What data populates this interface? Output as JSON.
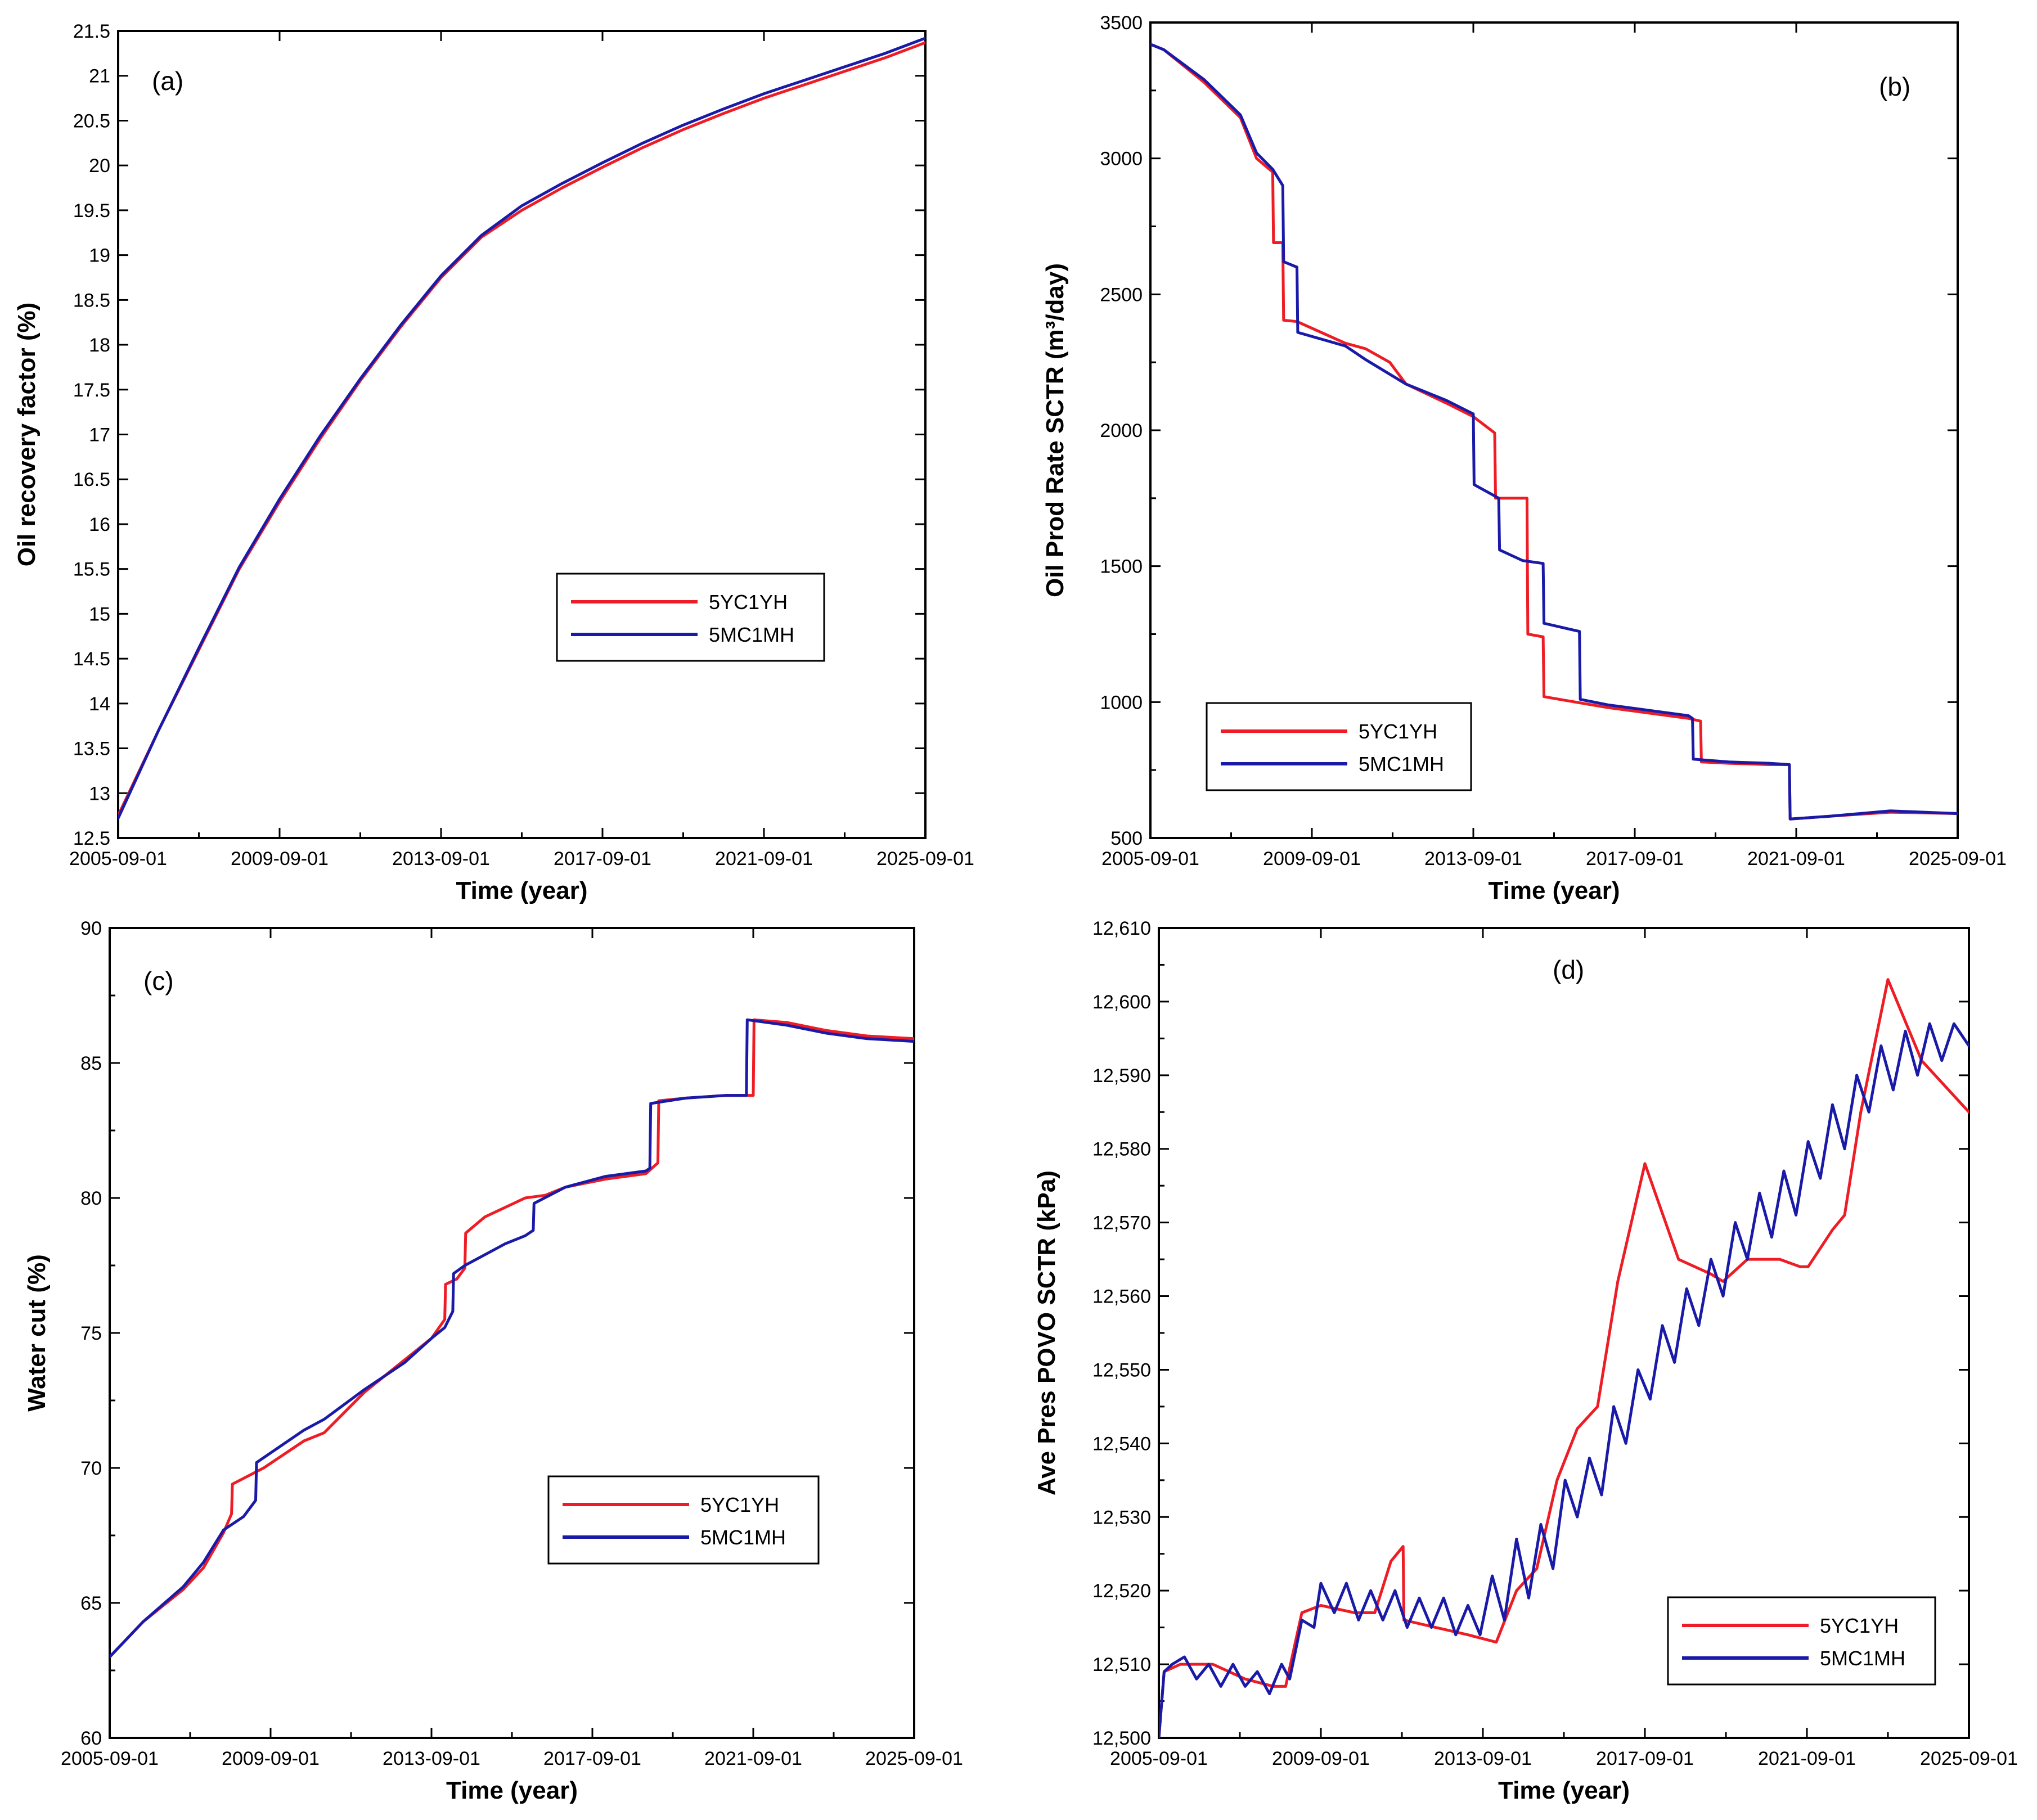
{
  "figure": {
    "colors": {
      "series_a": "#ee1c25",
      "series_b": "#1a1aa8"
    }
  },
  "chart_data": [
    {
      "panel": "(a)",
      "type": "line",
      "xlabel": "Time (year)",
      "ylabel": "Oil recovery factor (%)",
      "xlim": [
        2005.67,
        2025.67
      ],
      "ylim": [
        12.5,
        21.5
      ],
      "x_ticks": [
        2005.67,
        2009.67,
        2013.67,
        2017.67,
        2021.67,
        2025.67
      ],
      "x_tick_labels": [
        "2005-09-01",
        "2009-09-01",
        "2013-09-01",
        "2017-09-01",
        "2021-09-01",
        "2025-09-01"
      ],
      "y_ticks": [
        12.5,
        13,
        13.5,
        14,
        14.5,
        15,
        15.5,
        16,
        16.5,
        17,
        17.5,
        18,
        18.5,
        19,
        19.5,
        20,
        20.5,
        21,
        21.5
      ],
      "y_tick_labels": [
        "12.5",
        "13",
        "13.5",
        "14",
        "14.5",
        "15",
        "15.5",
        "16",
        "16.5",
        "17",
        "17.5",
        "18",
        "18.5",
        "19",
        "19.5",
        "20",
        "20.5",
        "21",
        "21.5"
      ],
      "legend_position": "middle-right",
      "series": [
        {
          "name": "5YC1YH",
          "color": "#ee1c25",
          "x": [
            2005.67,
            2006.67,
            2007.67,
            2008.67,
            2009.67,
            2010.67,
            2011.67,
            2012.67,
            2013.67,
            2014.67,
            2015.67,
            2016.67,
            2017.67,
            2018.67,
            2019.67,
            2020.67,
            2021.67,
            2022.67,
            2023.67,
            2024.67,
            2025.67
          ],
          "y": [
            12.75,
            13.7,
            14.6,
            15.5,
            16.25,
            16.95,
            17.6,
            18.2,
            18.75,
            19.2,
            19.5,
            19.75,
            19.98,
            20.2,
            20.4,
            20.58,
            20.75,
            20.9,
            21.05,
            21.2,
            21.37
          ]
        },
        {
          "name": "5MC1MH",
          "color": "#1a1aa8",
          "x": [
            2005.67,
            2006.67,
            2007.67,
            2008.67,
            2009.67,
            2010.67,
            2011.67,
            2012.67,
            2013.67,
            2014.67,
            2015.67,
            2016.67,
            2017.67,
            2018.67,
            2019.67,
            2020.67,
            2021.67,
            2022.67,
            2023.67,
            2024.67,
            2025.67
          ],
          "y": [
            12.72,
            13.7,
            14.62,
            15.52,
            16.28,
            16.98,
            17.62,
            18.22,
            18.77,
            19.22,
            19.55,
            19.8,
            20.03,
            20.25,
            20.45,
            20.63,
            20.8,
            20.95,
            21.1,
            21.25,
            21.42
          ]
        }
      ]
    },
    {
      "panel": "(b)",
      "type": "line",
      "xlabel": "Time (year)",
      "ylabel": "Oil Prod Rate SCTR (m³/day)",
      "xlim": [
        2005.67,
        2025.67
      ],
      "ylim": [
        500,
        3500
      ],
      "x_ticks": [
        2005.67,
        2009.67,
        2013.67,
        2017.67,
        2021.67,
        2025.67
      ],
      "x_tick_labels": [
        "2005-09-01",
        "2009-09-01",
        "2013-09-01",
        "2017-09-01",
        "2021-09-01",
        "2025-09-01"
      ],
      "y_ticks": [
        500,
        1000,
        1500,
        2000,
        2500,
        3000,
        3500
      ],
      "y_tick_labels": [
        "500",
        "1000",
        "1500",
        "2000",
        "2500",
        "3000",
        "3500"
      ],
      "legend_position": "bottom-left",
      "series": [
        {
          "name": "5YC1YH",
          "color": "#ee1c25",
          "x": [
            2005.67,
            2006.0,
            2007.0,
            2007.9,
            2008.3,
            2008.7,
            2008.72,
            2008.95,
            2008.97,
            2009.3,
            2010.5,
            2011.0,
            2011.6,
            2012.0,
            2013.0,
            2013.67,
            2014.2,
            2014.22,
            2014.5,
            2014.52,
            2015.0,
            2015.02,
            2015.4,
            2015.42,
            2016.2,
            2017.0,
            2018.0,
            2019.0,
            2019.3,
            2019.32,
            2020.0,
            2021.0,
            2021.5,
            2021.52,
            2022.5,
            2024.0,
            2025.67
          ],
          "y": [
            3420,
            3400,
            3280,
            3150,
            3000,
            2950,
            2690,
            2690,
            2405,
            2400,
            2320,
            2300,
            2250,
            2170,
            2100,
            2050,
            1990,
            1750,
            1750,
            1750,
            1750,
            1250,
            1240,
            1020,
            1000,
            980,
            960,
            940,
            930,
            780,
            775,
            770,
            770,
            570,
            580,
            595,
            590
          ]
        },
        {
          "name": "5MC1MH",
          "color": "#1a1aa8",
          "x": [
            2005.67,
            2006.0,
            2007.0,
            2007.9,
            2008.3,
            2008.7,
            2008.95,
            2008.97,
            2009.3,
            2009.32,
            2010.5,
            2011.0,
            2012.0,
            2013.0,
            2013.67,
            2013.69,
            2014.3,
            2014.32,
            2014.9,
            2014.92,
            2015.4,
            2015.42,
            2016.3,
            2016.32,
            2017.0,
            2018.0,
            2019.0,
            2019.1,
            2019.12,
            2020.0,
            2021.0,
            2021.5,
            2021.52,
            2022.5,
            2024.0,
            2025.67
          ],
          "y": [
            3420,
            3400,
            3290,
            3160,
            3020,
            2960,
            2900,
            2620,
            2600,
            2360,
            2310,
            2260,
            2170,
            2110,
            2060,
            1800,
            1750,
            1560,
            1520,
            1520,
            1510,
            1290,
            1260,
            1010,
            990,
            970,
            950,
            940,
            790,
            780,
            775,
            770,
            570,
            580,
            600,
            590
          ]
        }
      ]
    },
    {
      "panel": "(c)",
      "type": "line",
      "xlabel": "Time (year)",
      "ylabel": "Water cut (%)",
      "xlim": [
        2005.67,
        2025.67
      ],
      "ylim": [
        60,
        90
      ],
      "x_ticks": [
        2005.67,
        2009.67,
        2013.67,
        2017.67,
        2021.67,
        2025.67
      ],
      "x_tick_labels": [
        "2005-09-01",
        "2009-09-01",
        "2013-09-01",
        "2017-09-01",
        "2021-09-01",
        "2025-09-01"
      ],
      "y_ticks": [
        60,
        65,
        70,
        75,
        80,
        85,
        90
      ],
      "y_tick_labels": [
        "60",
        "65",
        "70",
        "75",
        "80",
        "85",
        "90"
      ],
      "legend_position": "bottom-right",
      "series": [
        {
          "name": "5YC1YH",
          "color": "#ee1c25",
          "x": [
            2005.67,
            2006.5,
            2007.5,
            2008.0,
            2008.5,
            2008.7,
            2008.72,
            2009.5,
            2010.5,
            2011.0,
            2012.0,
            2013.0,
            2013.67,
            2014.0,
            2014.02,
            2014.3,
            2014.5,
            2014.52,
            2015.0,
            2016.0,
            2016.5,
            2017.0,
            2018.0,
            2019.0,
            2019.3,
            2019.32,
            2020.0,
            2021.0,
            2021.67,
            2021.69,
            2022.5,
            2023.5,
            2024.5,
            2025.67
          ],
          "y": [
            63.0,
            64.3,
            65.5,
            66.3,
            67.6,
            68.3,
            69.4,
            70.0,
            71.0,
            71.3,
            72.8,
            74.0,
            74.8,
            75.5,
            76.8,
            77.0,
            77.4,
            78.7,
            79.3,
            80.0,
            80.1,
            80.4,
            80.7,
            80.9,
            81.3,
            83.6,
            83.7,
            83.8,
            83.8,
            86.6,
            86.5,
            86.2,
            86.0,
            85.9
          ]
        },
        {
          "name": "5MC1MH",
          "color": "#1a1aa8",
          "x": [
            2005.67,
            2006.5,
            2007.5,
            2008.0,
            2008.5,
            2009.0,
            2009.3,
            2009.32,
            2010.5,
            2011.0,
            2012.0,
            2013.0,
            2013.67,
            2014.0,
            2014.2,
            2014.22,
            2014.5,
            2015.0,
            2015.5,
            2016.0,
            2016.2,
            2016.22,
            2017.0,
            2018.0,
            2019.0,
            2019.1,
            2019.12,
            2020.0,
            2021.0,
            2021.5,
            2021.52,
            2022.5,
            2023.5,
            2024.5,
            2025.67
          ],
          "y": [
            63.0,
            64.3,
            65.6,
            66.5,
            67.7,
            68.2,
            68.8,
            70.2,
            71.4,
            71.8,
            72.9,
            73.9,
            74.8,
            75.2,
            75.8,
            77.2,
            77.5,
            77.9,
            78.3,
            78.6,
            78.8,
            79.8,
            80.4,
            80.8,
            81.0,
            81.1,
            83.5,
            83.7,
            83.8,
            83.8,
            86.6,
            86.4,
            86.1,
            85.9,
            85.8
          ]
        }
      ]
    },
    {
      "panel": "(d)",
      "type": "line",
      "xlabel": "Time (year)",
      "ylabel": "Ave Pres POVO SCTR (kPa)",
      "xlim": [
        2005.67,
        2025.67
      ],
      "ylim": [
        12500,
        12610
      ],
      "x_ticks": [
        2005.67,
        2009.67,
        2013.67,
        2017.67,
        2021.67,
        2025.67
      ],
      "x_tick_labels": [
        "2005-09-01",
        "2009-09-01",
        "2013-09-01",
        "2017-09-01",
        "2021-09-01",
        "2025-09-01"
      ],
      "y_ticks": [
        12500,
        12510,
        12520,
        12530,
        12540,
        12550,
        12560,
        12570,
        12580,
        12590,
        12600,
        12610
      ],
      "y_tick_labels": [
        "12,500",
        "12,510",
        "12,520",
        "12,530",
        "12,540",
        "12,550",
        "12,560",
        "12,570",
        "12,580",
        "12,590",
        "12,600",
        "12,610"
      ],
      "legend_position": "bottom-right",
      "series": [
        {
          "name": "5YC1YH",
          "color": "#ee1c25",
          "x": [
            2005.67,
            2005.8,
            2006.2,
            2007.0,
            2007.8,
            2008.5,
            2008.8,
            2009.2,
            2009.67,
            2010.5,
            2011.0,
            2011.4,
            2011.7,
            2011.72,
            2012.5,
            2013.3,
            2014.0,
            2014.5,
            2015.0,
            2015.5,
            2016.0,
            2016.5,
            2017.0,
            2017.67,
            2018.5,
            2019.3,
            2019.6,
            2020.2,
            2021.0,
            2021.5,
            2021.7,
            2022.3,
            2022.6,
            2023.0,
            2023.67,
            2024.5,
            2025.67
          ],
          "y": [
            12500,
            12509,
            12510,
            12510,
            12508,
            12507,
            12507,
            12517,
            12518,
            12517,
            12517,
            12524,
            12526,
            12516,
            12515,
            12514,
            12513,
            12520,
            12523,
            12535,
            12542,
            12545,
            12562,
            12578,
            12565,
            12563,
            12562,
            12565,
            12565,
            12564,
            12564,
            12569,
            12571,
            12585,
            12603,
            12592,
            12585
          ]
        },
        {
          "name": "5MC1MH",
          "color": "#1a1aa8",
          "x": [
            2005.67,
            2005.8,
            2006.0,
            2006.3,
            2006.6,
            2006.9,
            2007.2,
            2007.5,
            2007.8,
            2008.1,
            2008.4,
            2008.7,
            2008.9,
            2009.2,
            2009.5,
            2009.67,
            2010.0,
            2010.3,
            2010.6,
            2010.9,
            2011.2,
            2011.5,
            2011.8,
            2012.1,
            2012.4,
            2012.7,
            2013.0,
            2013.3,
            2013.6,
            2013.9,
            2014.2,
            2014.5,
            2014.8,
            2015.1,
            2015.4,
            2015.7,
            2016.0,
            2016.3,
            2016.6,
            2016.9,
            2017.2,
            2017.5,
            2017.8,
            2018.1,
            2018.4,
            2018.7,
            2019.0,
            2019.3,
            2019.6,
            2019.9,
            2020.2,
            2020.5,
            2020.8,
            2021.1,
            2021.4,
            2021.7,
            2022.0,
            2022.3,
            2022.6,
            2022.9,
            2023.2,
            2023.5,
            2023.8,
            2024.1,
            2024.4,
            2024.7,
            2025.0,
            2025.3,
            2025.67
          ],
          "y": [
            12500,
            12509,
            12510,
            12511,
            12508,
            12510,
            12507,
            12510,
            12507,
            12509,
            12506,
            12510,
            12508,
            12516,
            12515,
            12521,
            12517,
            12521,
            12516,
            12520,
            12516,
            12520,
            12515,
            12519,
            12515,
            12519,
            12514,
            12518,
            12514,
            12522,
            12516,
            12527,
            12519,
            12529,
            12523,
            12535,
            12530,
            12538,
            12533,
            12545,
            12540,
            12550,
            12546,
            12556,
            12551,
            12561,
            12556,
            12565,
            12560,
            12570,
            12565,
            12574,
            12568,
            12577,
            12571,
            12581,
            12576,
            12586,
            12580,
            12590,
            12585,
            12594,
            12588,
            12596,
            12590,
            12597,
            12592,
            12597,
            12594
          ]
        }
      ]
    }
  ]
}
